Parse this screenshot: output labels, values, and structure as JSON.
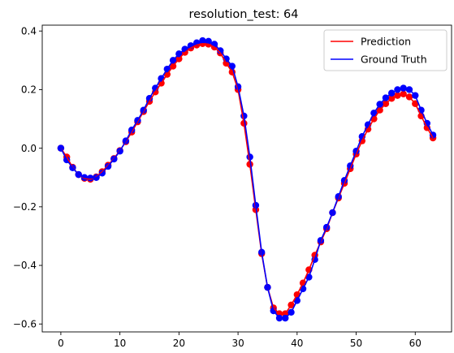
{
  "chart_data": {
    "type": "line",
    "title": "resolution_test: 64",
    "xlabel": "",
    "ylabel": "",
    "xlim": [
      -3.15,
      66.15
    ],
    "ylim": [
      -0.627,
      0.42
    ],
    "xticks": [
      0,
      10,
      20,
      30,
      40,
      50,
      60
    ],
    "yticks": [
      -0.6,
      -0.4,
      -0.2,
      0.0,
      0.2,
      0.4
    ],
    "ytick_labels": [
      "−0.6",
      "−0.4",
      "−0.2",
      "0.0",
      "0.2",
      "0.4"
    ],
    "grid": false,
    "legend_position": "upper right",
    "x": [
      0,
      1,
      2,
      3,
      4,
      5,
      6,
      7,
      8,
      9,
      10,
      11,
      12,
      13,
      14,
      15,
      16,
      17,
      18,
      19,
      20,
      21,
      22,
      23,
      24,
      25,
      26,
      27,
      28,
      29,
      30,
      31,
      32,
      33,
      34,
      35,
      36,
      37,
      38,
      39,
      40,
      41,
      42,
      43,
      44,
      45,
      46,
      47,
      48,
      49,
      50,
      51,
      52,
      53,
      54,
      55,
      56,
      57,
      58,
      59,
      60,
      61,
      62,
      63
    ],
    "series": [
      {
        "name": "Prediction",
        "color": "#ff0000",
        "values": [
          0.0,
          -0.03,
          -0.065,
          -0.09,
          -0.103,
          -0.106,
          -0.098,
          -0.08,
          -0.058,
          -0.035,
          -0.008,
          0.022,
          0.055,
          0.09,
          0.125,
          0.16,
          0.192,
          0.222,
          0.252,
          0.28,
          0.305,
          0.327,
          0.342,
          0.352,
          0.357,
          0.355,
          0.345,
          0.325,
          0.29,
          0.26,
          0.2,
          0.085,
          -0.055,
          -0.21,
          -0.36,
          -0.475,
          -0.545,
          -0.565,
          -0.565,
          -0.535,
          -0.5,
          -0.46,
          -0.415,
          -0.365,
          -0.32,
          -0.275,
          -0.22,
          -0.17,
          -0.12,
          -0.07,
          -0.02,
          0.025,
          0.065,
          0.1,
          0.13,
          0.152,
          0.17,
          0.18,
          0.185,
          0.175,
          0.152,
          0.11,
          0.07,
          0.035
        ]
      },
      {
        "name": "Ground Truth",
        "color": "#0000ff",
        "values": [
          0.0,
          -0.04,
          -0.067,
          -0.09,
          -0.1,
          -0.102,
          -0.1,
          -0.085,
          -0.062,
          -0.037,
          -0.01,
          0.025,
          0.062,
          0.095,
          0.13,
          0.17,
          0.205,
          0.238,
          0.27,
          0.3,
          0.322,
          0.338,
          0.35,
          0.36,
          0.367,
          0.365,
          0.355,
          0.333,
          0.305,
          0.28,
          0.21,
          0.11,
          -0.03,
          -0.195,
          -0.355,
          -0.475,
          -0.555,
          -0.58,
          -0.58,
          -0.56,
          -0.52,
          -0.48,
          -0.44,
          -0.38,
          -0.315,
          -0.27,
          -0.22,
          -0.165,
          -0.11,
          -0.06,
          -0.01,
          0.04,
          0.08,
          0.12,
          0.15,
          0.172,
          0.188,
          0.2,
          0.205,
          0.2,
          0.18,
          0.13,
          0.085,
          0.045
        ]
      }
    ]
  }
}
